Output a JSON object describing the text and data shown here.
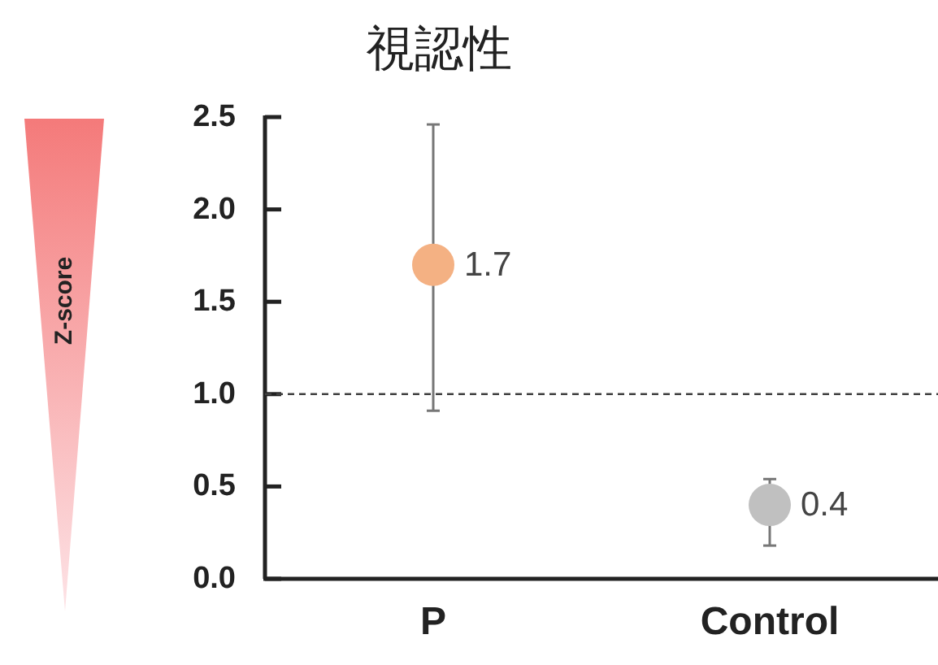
{
  "chart_data": {
    "type": "scatter",
    "title": "視認性",
    "ylabel": "Z-score",
    "categories": [
      "P",
      "Control"
    ],
    "values": [
      1.7,
      0.4
    ],
    "colors": [
      "#f4b183",
      "#c0c0c0"
    ],
    "errors": [
      [
        0.91,
        2.46
      ],
      [
        0.18,
        0.54
      ]
    ],
    "marker": "circle",
    "data_labels": true,
    "ylim": [
      0,
      2.5
    ],
    "yticks": [
      {
        "value": 0,
        "label": "0.0"
      },
      {
        "value": 0.5,
        "label": "0.5"
      },
      {
        "value": 1,
        "label": "1.0"
      },
      {
        "value": 1.5,
        "label": "1.5"
      },
      {
        "value": 2,
        "label": "2.0"
      },
      {
        "value": 2.5,
        "label": "2.5"
      }
    ],
    "ref_lines": [
      {
        "axis": "y",
        "value": 1,
        "line_style": "dashed",
        "color": "#404040"
      }
    ]
  }
}
